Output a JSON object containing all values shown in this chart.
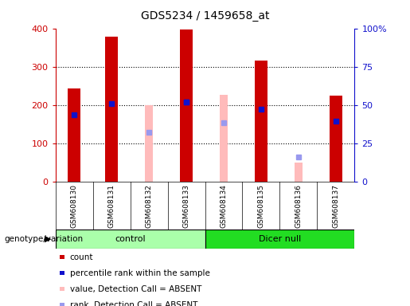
{
  "title": "GDS5234 / 1459658_at",
  "samples": [
    "GSM608130",
    "GSM608131",
    "GSM608132",
    "GSM608133",
    "GSM608134",
    "GSM608135",
    "GSM608136",
    "GSM608137"
  ],
  "red_bars": [
    245,
    380,
    0,
    398,
    0,
    318,
    0,
    225
  ],
  "blue_squares_val": [
    175,
    205,
    0,
    210,
    0,
    190,
    0,
    160
  ],
  "pink_bars": [
    0,
    0,
    200,
    0,
    228,
    0,
    50,
    0
  ],
  "pink_present": [
    false,
    false,
    true,
    false,
    true,
    false,
    true,
    false
  ],
  "lightblue_squares_val": [
    0,
    0,
    130,
    0,
    155,
    0,
    65,
    0
  ],
  "lightblue_present": [
    false,
    false,
    true,
    false,
    true,
    false,
    true,
    false
  ],
  "blue_on_pink": [
    false,
    false,
    false,
    true,
    false,
    false,
    false,
    false
  ],
  "ylim": [
    0,
    400
  ],
  "y2lim": [
    0,
    100
  ],
  "yticks": [
    0,
    100,
    200,
    300,
    400
  ],
  "y2ticks": [
    0,
    25,
    50,
    75,
    100
  ],
  "y2ticklabels": [
    "0",
    "25",
    "50",
    "75",
    "100%"
  ],
  "red_color": "#cc0000",
  "blue_color": "#1111cc",
  "pink_color": "#ffbbbb",
  "lightblue_color": "#9999ee",
  "bg_gray": "#c8c8c8",
  "ctrl_color": "#aaffaa",
  "dicer_color": "#22dd22",
  "bar_width": 0.35,
  "thin_bar_width": 0.22,
  "group_label": "genotype/variation",
  "ctrl_name": "control",
  "dicer_name": "Dicer null",
  "legend_labels": [
    "count",
    "percentile rank within the sample",
    "value, Detection Call = ABSENT",
    "rank, Detection Call = ABSENT"
  ],
  "legend_colors": [
    "#cc0000",
    "#1111cc",
    "#ffbbbb",
    "#9999ee"
  ]
}
